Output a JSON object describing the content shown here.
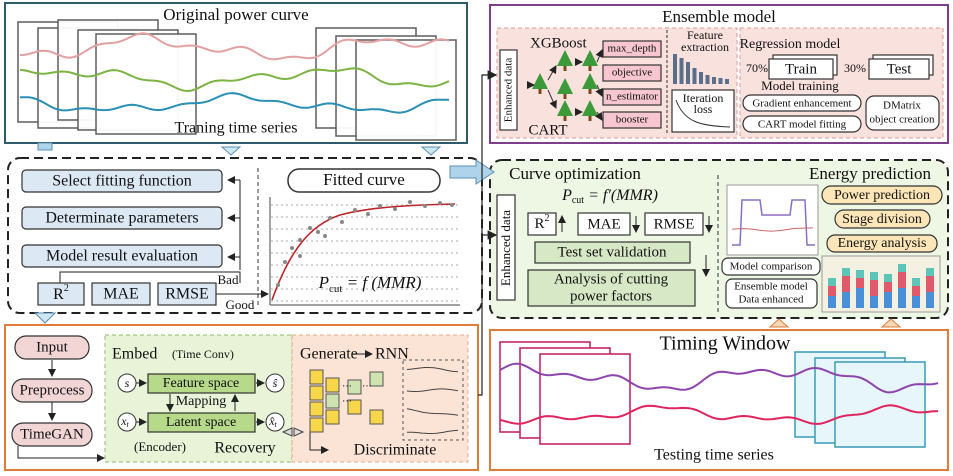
{
  "top_left": {
    "title": "Original power curve",
    "caption": "Traning time series"
  },
  "fitting": {
    "steps": [
      "Select fitting function",
      "Determinate parameters",
      "Model result evaluation"
    ],
    "r2": {
      "base": "R",
      "sup": "2"
    },
    "mae": "MAE",
    "rmse": "RMSE",
    "bad": "Bad",
    "good": "Good",
    "fitted_title": "Fitted curve",
    "formula": {
      "lhs": "P",
      "sub": "cut",
      "rhs": " = f (MMR)"
    }
  },
  "timegan": {
    "steps": [
      "Input",
      "Preprocess",
      "TimeGAN"
    ],
    "embed": "Embed",
    "time_conv": "(Time Conv)",
    "feature_space": "Feature space",
    "mapping": "Mapping",
    "latent_space": "Latent space",
    "encoder": "(Encoder)",
    "recovery": "Recovery",
    "generate": "Generate",
    "rnn": "RNN",
    "discriminate": "Discriminate",
    "s": "s",
    "s_hat": "ŝ",
    "x": {
      "base": "x",
      "sub": "t"
    },
    "x_hat": {
      "base": "x̂",
      "sub": "t"
    }
  },
  "ensemble": {
    "title": "Ensemble model",
    "xgboost": "XGBoost",
    "enhanced_data": "Enhanced data",
    "cart": "CART",
    "params": [
      "max_depth",
      "objective",
      "n_estimator",
      "booster"
    ],
    "feature_extraction": [
      "Feature",
      "extraction"
    ],
    "iteration_loss": [
      "Iteration",
      "loss"
    ],
    "regression_title": "Regression model",
    "train_pct": "70%",
    "train": "Train",
    "test_pct": "30%",
    "test": "Test",
    "model_training": "Model training",
    "gradient": "Gradient enhancement",
    "cart_fitting": "CART model fitting",
    "dmatrix": [
      "DMatrix",
      "object creation"
    ]
  },
  "curve_opt": {
    "title": "Curve optimization",
    "formula": {
      "lhs": "P",
      "sub": "cut",
      "rhs": " = f′(MMR)"
    },
    "enhanced_data": "Enhanced data",
    "r2": {
      "base": "R",
      "sup": "2"
    },
    "mae": "MAE",
    "rmse": "RMSE",
    "validation": "Test set validation",
    "analysis": [
      "Analysis of cutting",
      "power factors"
    ]
  },
  "energy": {
    "title": "Energy prediction",
    "items": [
      "Power prediction",
      "Stage division",
      "Energy analysis"
    ],
    "model_comparison": "Model comparison",
    "ensemble_data": [
      "Ensemble model",
      "Data enhanced"
    ]
  },
  "timing": {
    "title": "Timing Window",
    "caption": "Testing time series"
  }
}
